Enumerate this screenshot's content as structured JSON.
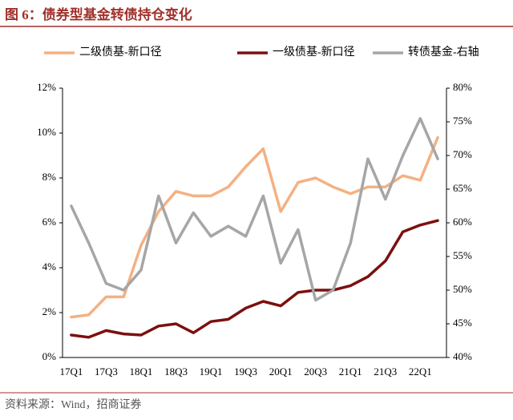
{
  "chart_data": {
    "type": "line",
    "title": "图 6：债券型基金转债持仓变化",
    "source": "资料来源：Wind，招商证券",
    "categories": [
      "17Q1",
      null,
      "17Q3",
      null,
      "18Q1",
      null,
      "18Q3",
      null,
      "19Q1",
      null,
      "19Q3",
      null,
      "20Q1",
      null,
      "20Q3",
      null,
      "21Q1",
      null,
      "21Q3",
      null,
      "22Q1",
      null
    ],
    "series": [
      {
        "name": "二级债基-新口径",
        "color": "#f4b183",
        "values": [
          1.8,
          1.9,
          2.7,
          2.7,
          5.0,
          6.5,
          7.4,
          7.2,
          7.2,
          7.6,
          8.5,
          9.3,
          6.5,
          7.8,
          8.0,
          7.6,
          7.3,
          7.6,
          7.6,
          8.1,
          7.9,
          9.8
        ]
      },
      {
        "name": "一级债基-新口径",
        "color": "#7b1010",
        "values": [
          1.0,
          0.9,
          1.2,
          1.05,
          1.0,
          1.4,
          1.5,
          1.1,
          1.6,
          1.7,
          2.2,
          2.5,
          2.3,
          2.9,
          3.0,
          3.0,
          3.2,
          3.6,
          4.3,
          5.6,
          5.9,
          6.1
        ]
      },
      {
        "name": "转债基金-右轴",
        "color": "#a6a6a6",
        "axis": "y2",
        "values": [
          62.5,
          57,
          51,
          50,
          53,
          64,
          57,
          61.5,
          58,
          59.5,
          58,
          64,
          54,
          59,
          48.5,
          50,
          57,
          69.5,
          63.5,
          70,
          75.5,
          69.5
        ]
      }
    ],
    "ylim": [
      0,
      12
    ],
    "yticks": [
      {
        "value": 0,
        "label": "0%"
      },
      {
        "value": 2,
        "label": "2%"
      },
      {
        "value": 4,
        "label": "4%"
      },
      {
        "value": 6,
        "label": "6%"
      },
      {
        "value": 8,
        "label": "8%"
      },
      {
        "value": 10,
        "label": "10%"
      },
      {
        "value": 12,
        "label": "12%"
      }
    ],
    "y2lim": [
      40,
      80
    ],
    "y2ticks": [
      {
        "value": 40,
        "label": "40%"
      },
      {
        "value": 45,
        "label": "45%"
      },
      {
        "value": 50,
        "label": "50%"
      },
      {
        "value": 55,
        "label": "55%"
      },
      {
        "value": 60,
        "label": "60%"
      },
      {
        "value": 65,
        "label": "65%"
      },
      {
        "value": 70,
        "label": "70%"
      },
      {
        "value": 75,
        "label": "75%"
      },
      {
        "value": 80,
        "label": "80%"
      }
    ]
  }
}
